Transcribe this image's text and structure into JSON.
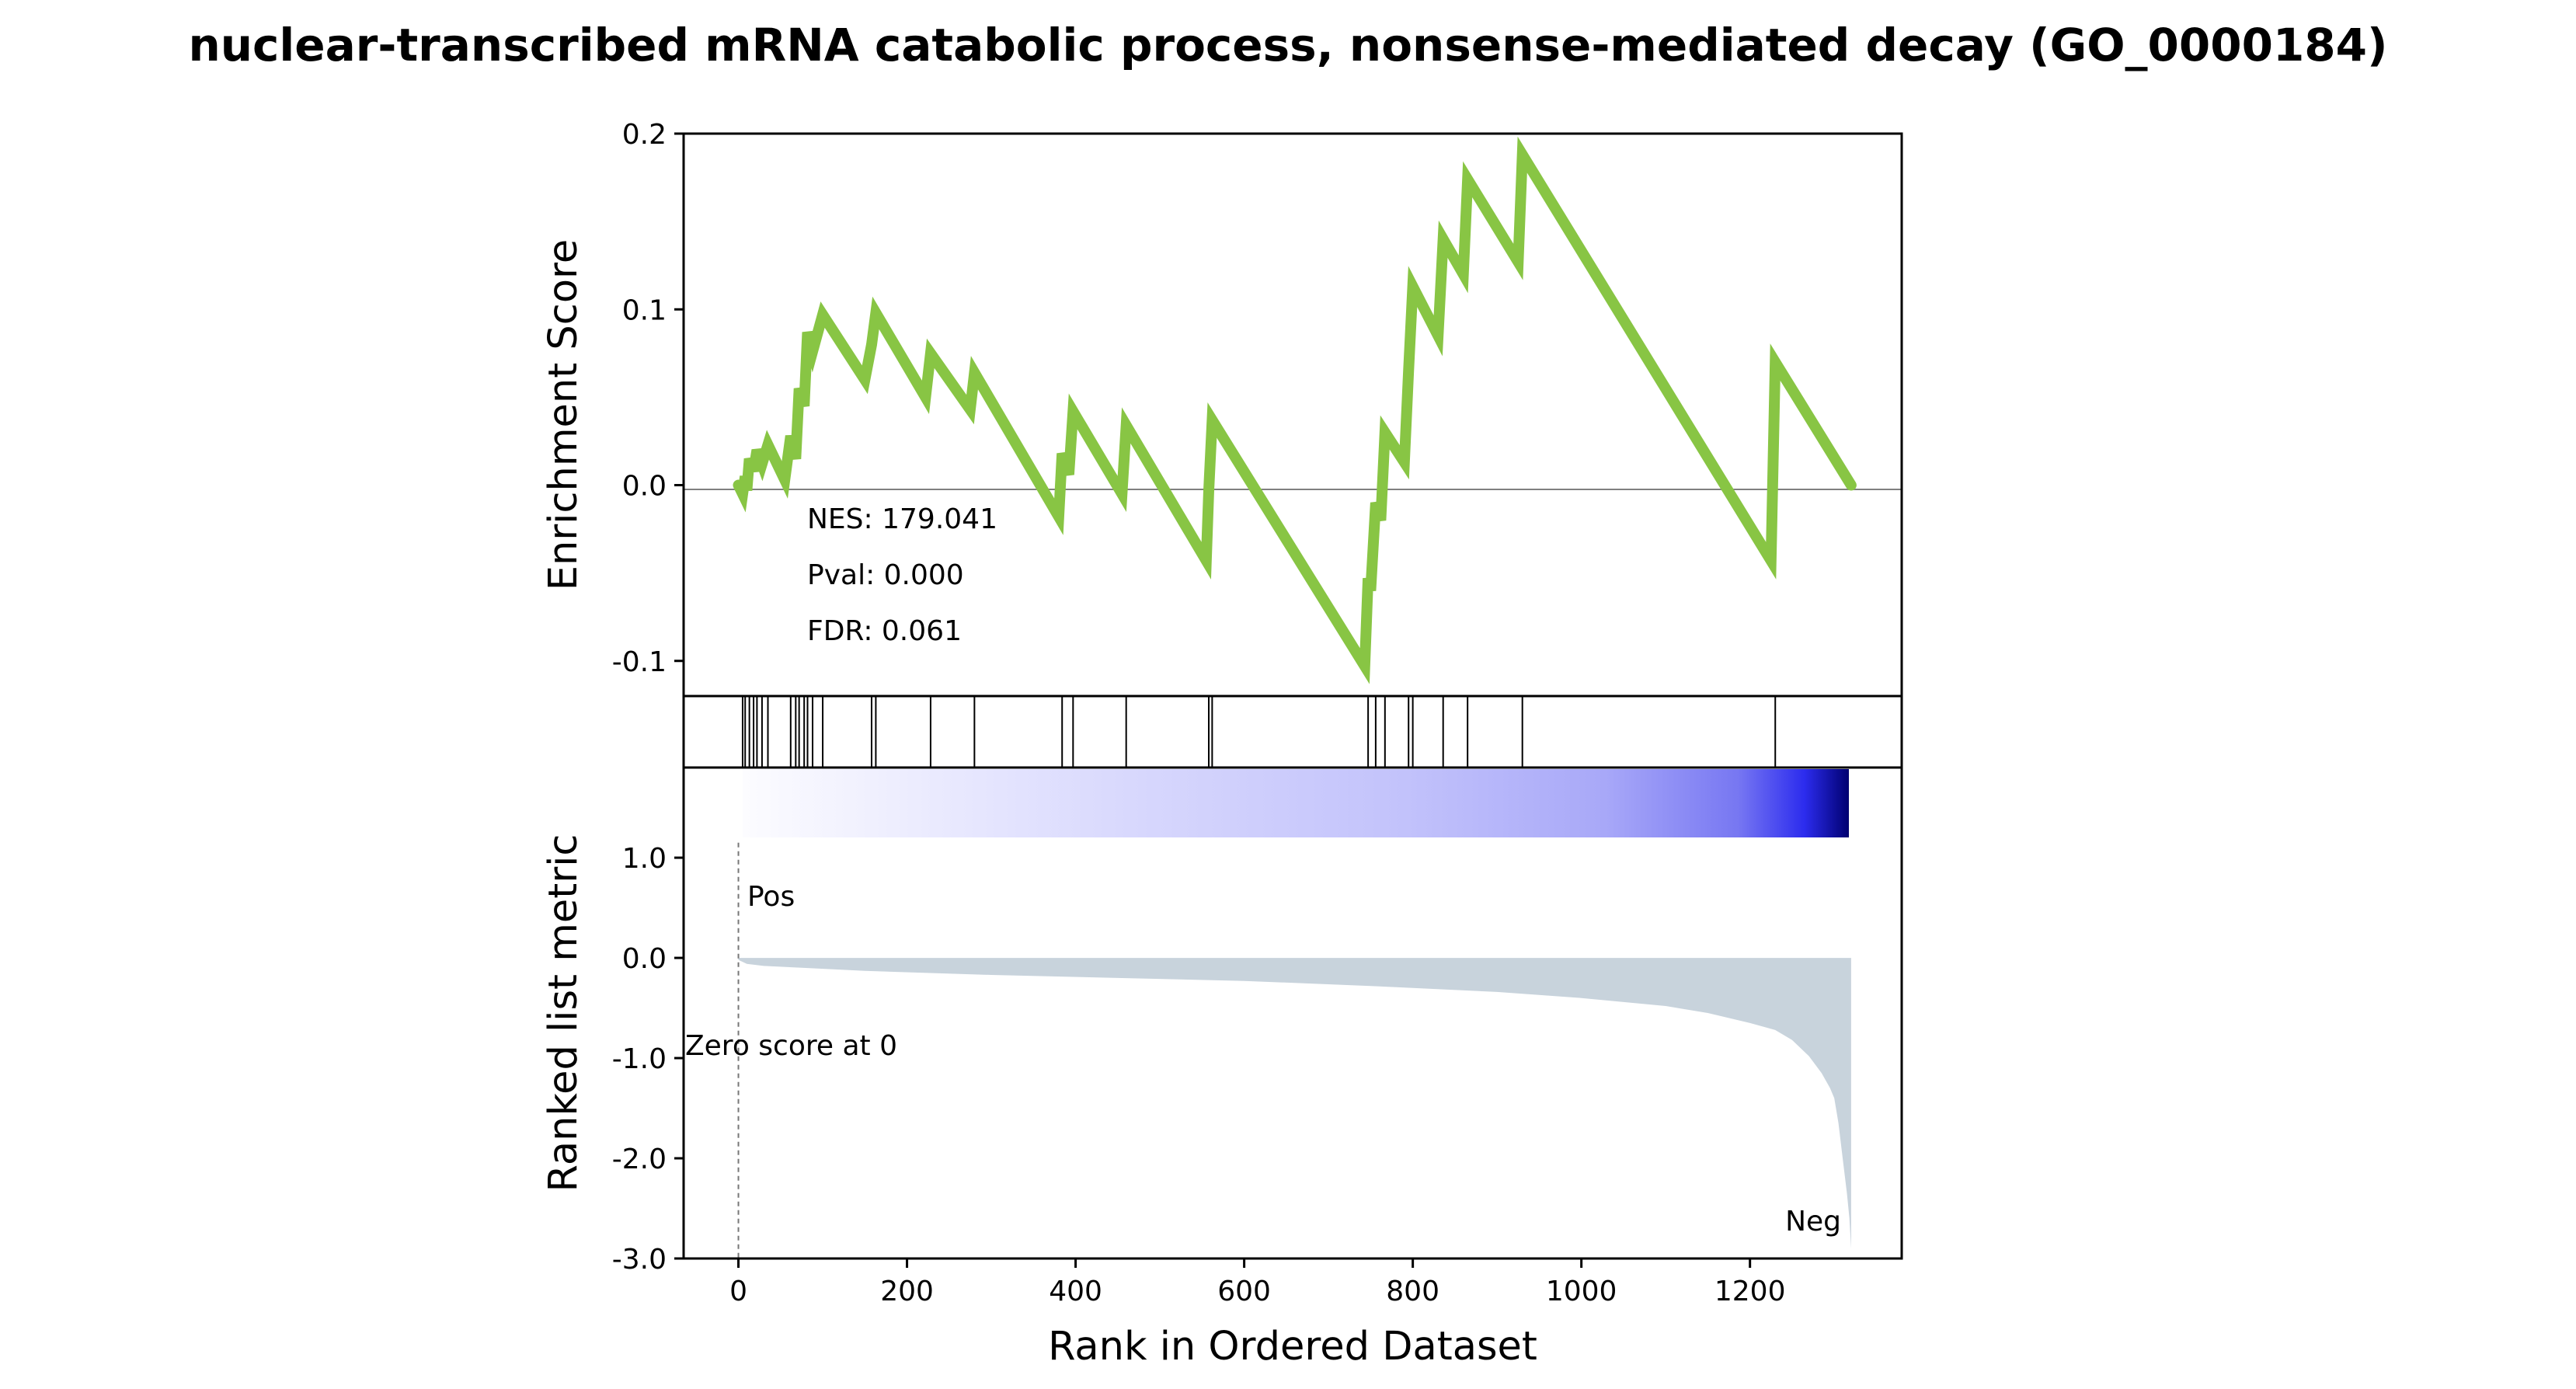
{
  "title": "nuclear-transcribed mRNA catabolic process, nonsense-mediated decay (GO_0000184)",
  "chart_data": {
    "type": "line",
    "x_range": [
      -65,
      1380
    ],
    "xlabel": "Rank in Ordered Dataset",
    "x_ticks": [
      0,
      200,
      400,
      600,
      800,
      1000,
      1200
    ],
    "x_tick_labels": [
      "0",
      "200",
      "400",
      "600",
      "800",
      "1000",
      "1200"
    ],
    "n_genes": 1320,
    "es_panel": {
      "ylabel": "Enrichment Score",
      "ylim": [
        -0.12,
        0.2
      ],
      "y_ticks": [
        -0.1,
        0.0,
        0.1,
        0.2
      ],
      "y_tick_labels": [
        "-0.1",
        "0.0",
        "0.1",
        "0.2"
      ],
      "zero_line": true,
      "line_color": "#88c544",
      "running_es": [
        [
          0,
          0.0
        ],
        [
          5,
          -0.005
        ],
        [
          8,
          0.005
        ],
        [
          10,
          -0.003
        ],
        [
          13,
          0.015
        ],
        [
          18,
          0.008
        ],
        [
          22,
          0.02
        ],
        [
          28,
          0.012
        ],
        [
          35,
          0.023
        ],
        [
          55,
          0.003
        ],
        [
          62,
          0.028
        ],
        [
          68,
          0.015
        ],
        [
          72,
          0.055
        ],
        [
          78,
          0.045
        ],
        [
          82,
          0.087
        ],
        [
          88,
          0.076
        ],
        [
          100,
          0.097
        ],
        [
          150,
          0.06
        ],
        [
          158,
          0.08
        ],
        [
          163,
          0.098
        ],
        [
          222,
          0.05
        ],
        [
          228,
          0.075
        ],
        [
          275,
          0.043
        ],
        [
          280,
          0.064
        ],
        [
          380,
          -0.018
        ],
        [
          384,
          0.018
        ],
        [
          392,
          0.006
        ],
        [
          397,
          0.042
        ],
        [
          455,
          -0.005
        ],
        [
          460,
          0.034
        ],
        [
          555,
          -0.043
        ],
        [
          558,
          -0.003
        ],
        [
          562,
          0.037
        ],
        [
          743,
          -0.103
        ],
        [
          747,
          -0.053
        ],
        [
          750,
          -0.06
        ],
        [
          756,
          -0.01
        ],
        [
          762,
          -0.02
        ],
        [
          767,
          0.03
        ],
        [
          790,
          0.013
        ],
        [
          795,
          0.065
        ],
        [
          800,
          0.113
        ],
        [
          830,
          0.085
        ],
        [
          836,
          0.14
        ],
        [
          860,
          0.12
        ],
        [
          865,
          0.174
        ],
        [
          925,
          0.127
        ],
        [
          930,
          0.188
        ],
        [
          1225,
          -0.043
        ],
        [
          1230,
          0.07
        ],
        [
          1320,
          0.0
        ]
      ]
    },
    "hits": [
      5,
      8,
      13,
      18,
      22,
      28,
      35,
      62,
      68,
      72,
      78,
      82,
      88,
      100,
      158,
      163,
      228,
      280,
      384,
      397,
      460,
      558,
      562,
      747,
      756,
      767,
      795,
      800,
      836,
      865,
      930,
      1230
    ],
    "ranked_panel": {
      "ylabel": "Ranked list metric",
      "ylim": [
        -3.0,
        1.9
      ],
      "y_ticks": [
        -3.0,
        -2.0,
        -1.0,
        0.0,
        1.0
      ],
      "y_tick_labels": [
        "-3.0",
        "-2.0",
        "-1.0",
        "0.0",
        "1.0"
      ],
      "fill_color": "#c8d3dc",
      "metric_curve": [
        [
          0,
          -0.02
        ],
        [
          10,
          -0.06
        ],
        [
          30,
          -0.08
        ],
        [
          80,
          -0.1
        ],
        [
          150,
          -0.13
        ],
        [
          300,
          -0.17
        ],
        [
          450,
          -0.2
        ],
        [
          600,
          -0.23
        ],
        [
          750,
          -0.28
        ],
        [
          900,
          -0.34
        ],
        [
          1000,
          -0.4
        ],
        [
          1100,
          -0.48
        ],
        [
          1150,
          -0.55
        ],
        [
          1200,
          -0.65
        ],
        [
          1230,
          -0.72
        ],
        [
          1250,
          -0.82
        ],
        [
          1270,
          -0.98
        ],
        [
          1285,
          -1.15
        ],
        [
          1295,
          -1.3
        ],
        [
          1300,
          -1.4
        ],
        [
          1305,
          -1.65
        ],
        [
          1310,
          -2.0
        ],
        [
          1315,
          -2.35
        ],
        [
          1318,
          -2.6
        ],
        [
          1320,
          -2.9
        ]
      ],
      "pos_label": "Pos",
      "neg_label": "Neg",
      "zero_cross_label": "Zero score at 0",
      "pos_color": "#dd0000",
      "neg_color": "#0000cc"
    },
    "stats": {
      "nes": "NES: 179.041",
      "pval": "Pval: 0.000",
      "fdr": "FDR: 0.061"
    }
  }
}
